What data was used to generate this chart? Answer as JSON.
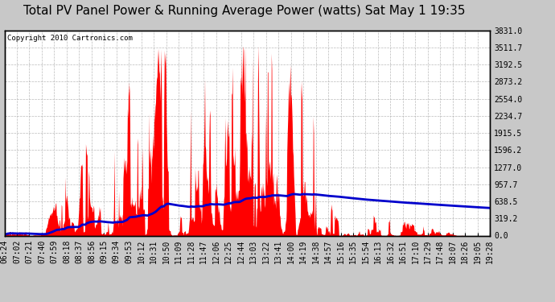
{
  "title": "Total PV Panel Power & Running Average Power (watts) Sat May 1 19:35",
  "copyright": "Copyright 2010 Cartronics.com",
  "ylabel_right": [
    "3831.0",
    "3511.7",
    "3192.5",
    "2873.2",
    "2554.0",
    "2234.7",
    "1915.5",
    "1596.2",
    "1277.0",
    "957.7",
    "638.5",
    "319.2",
    "0.0"
  ],
  "ymax": 3831.0,
  "ymin": 0.0,
  "bar_color": "#ff0000",
  "line_color": "#0000cc",
  "bg_color": "#ffffff",
  "fig_bg_color": "#c8c8c8",
  "x_labels": [
    "06:24",
    "07:02",
    "07:21",
    "07:40",
    "07:59",
    "08:18",
    "08:37",
    "08:56",
    "09:15",
    "09:34",
    "09:53",
    "10:12",
    "10:31",
    "10:50",
    "11:09",
    "11:28",
    "11:47",
    "12:06",
    "12:25",
    "12:44",
    "13:03",
    "13:22",
    "13:41",
    "14:00",
    "14:19",
    "14:38",
    "14:57",
    "15:16",
    "15:35",
    "15:54",
    "16:13",
    "16:32",
    "16:51",
    "17:10",
    "17:29",
    "17:48",
    "18:07",
    "18:26",
    "19:05",
    "19:28"
  ],
  "title_fontsize": 11,
  "tick_fontsize": 7,
  "copyright_fontsize": 6.5
}
